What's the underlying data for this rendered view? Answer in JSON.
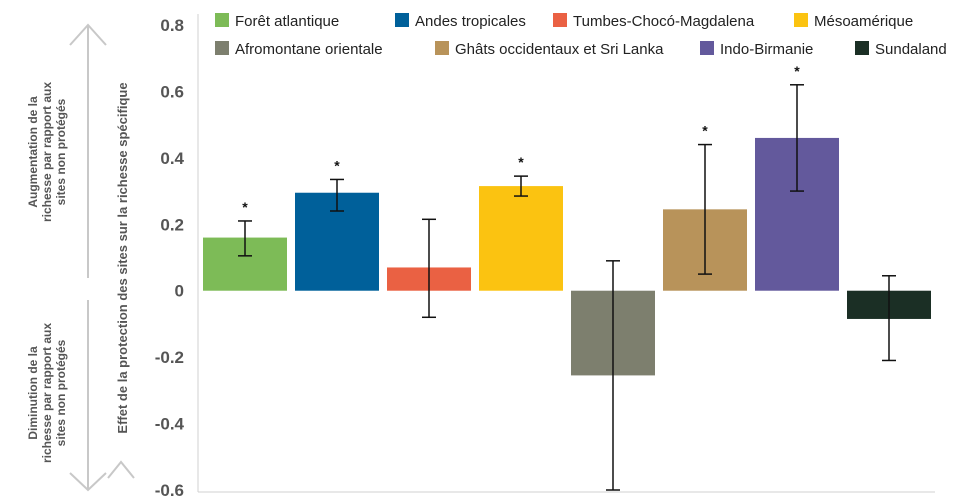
{
  "chart_data": {
    "type": "bar",
    "title": "",
    "xlabel": "",
    "ylabel": "Effet de la protection des sites sur la richesse spécifique",
    "ylim": [
      -0.6,
      0.8
    ],
    "yticks": [
      {
        "value": 0.8,
        "label": "0.8"
      },
      {
        "value": 0.6,
        "label": "0.6"
      },
      {
        "value": 0.4,
        "label": "0.4"
      },
      {
        "value": 0.2,
        "label": "0.2"
      },
      {
        "value": 0,
        "label": "0"
      },
      {
        "value": -0.2,
        "label": "-0.2"
      },
      {
        "value": -0.4,
        "label": "-0.4"
      },
      {
        "value": -0.6,
        "label": "-0.6"
      }
    ],
    "grid": false,
    "legend_position": "top",
    "series": [
      {
        "name": "Forêt atlantique",
        "value": 0.16,
        "err_low": 0.105,
        "err_high": 0.21,
        "significant": true,
        "color": "#7dbb57"
      },
      {
        "name": "Andes tropicales",
        "value": 0.295,
        "err_low": 0.24,
        "err_high": 0.335,
        "significant": true,
        "color": "#00609a"
      },
      {
        "name": "Tumbes-Chocó-Magdalena",
        "value": 0.07,
        "err_low": -0.08,
        "err_high": 0.215,
        "significant": false,
        "color": "#ea6143"
      },
      {
        "name": "Mésoamérique",
        "value": 0.315,
        "err_low": 0.285,
        "err_high": 0.345,
        "significant": true,
        "color": "#fbc311"
      },
      {
        "name": "Afromontane orientale",
        "value": -0.255,
        "err_low": -0.6,
        "err_high": 0.09,
        "significant": false,
        "color": "#7d7f6e"
      },
      {
        "name": "Ghâts occidentaux et Sri Lanka",
        "value": 0.245,
        "err_low": 0.05,
        "err_high": 0.44,
        "significant": true,
        "color": "#b8935a"
      },
      {
        "name": "Indo-Birmanie",
        "value": 0.46,
        "err_low": 0.3,
        "err_high": 0.62,
        "significant": true,
        "color": "#63599c"
      },
      {
        "name": "Sundaland",
        "value": -0.085,
        "err_low": -0.21,
        "err_high": 0.045,
        "significant": false,
        "color": "#1b2f25"
      }
    ],
    "significance_marker": "*",
    "annotations": {
      "increase": [
        "Augmentation de la",
        "richesse par rapport aux",
        "sites non protégés"
      ],
      "decrease": [
        "Diminution de la",
        "richesse par rapport aux",
        "sites non protégés"
      ]
    }
  }
}
